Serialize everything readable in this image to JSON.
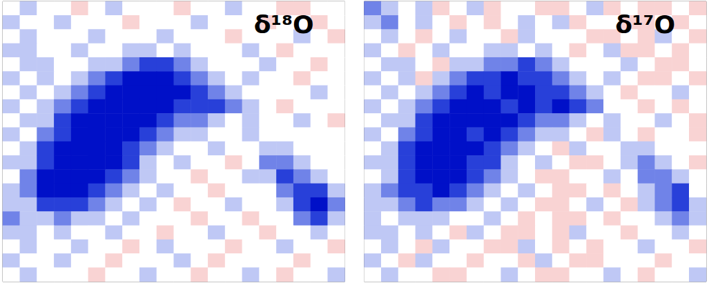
{
  "chart_data": [
    {
      "type": "heatmap",
      "title": "δ¹⁸O",
      "zlim": [
        -4,
        4
      ],
      "tick_labels": false,
      "cells": [
        [
          0,
          -1,
          0,
          0,
          1,
          0,
          -1,
          0,
          0,
          0,
          1,
          0,
          0,
          -1,
          0,
          0,
          1,
          1,
          0,
          0
        ],
        [
          -1,
          0,
          0,
          -1,
          0,
          0,
          0,
          1,
          0,
          0,
          0,
          -1,
          0,
          0,
          0,
          1,
          0,
          0,
          1,
          0
        ],
        [
          0,
          -1,
          0,
          0,
          0,
          -1,
          0,
          0,
          0,
          -1,
          0,
          0,
          0,
          1,
          0,
          0,
          0,
          -1,
          0,
          1
        ],
        [
          -1,
          -1,
          0,
          0,
          -1,
          0,
          0,
          -1,
          -1,
          0,
          -1,
          0,
          0,
          0,
          -1,
          0,
          1,
          0,
          0,
          0
        ],
        [
          0,
          -1,
          -1,
          0,
          0,
          -1,
          -1,
          -2,
          -3,
          -3,
          -2,
          -1,
          0,
          0,
          0,
          -1,
          0,
          0,
          1,
          0
        ],
        [
          -1,
          0,
          -1,
          0,
          -1,
          -2,
          -3,
          -4,
          -4,
          -4,
          -3,
          -2,
          -1,
          0,
          -1,
          0,
          0,
          1,
          0,
          0
        ],
        [
          0,
          -1,
          0,
          -1,
          -2,
          -3,
          -4,
          -4,
          -4,
          -4,
          -4,
          -3,
          -2,
          -1,
          0,
          0,
          0,
          0,
          -1,
          0
        ],
        [
          -1,
          0,
          -1,
          -2,
          -3,
          -4,
          -4,
          -4,
          -4,
          -4,
          -3,
          -3,
          -3,
          -2,
          -1,
          0,
          1,
          0,
          0,
          0
        ],
        [
          0,
          -1,
          -1,
          -3,
          -4,
          -4,
          -4,
          -4,
          -4,
          -3,
          -2,
          -2,
          -1,
          0,
          -1,
          0,
          0,
          -1,
          0,
          1
        ],
        [
          -1,
          0,
          -2,
          -3,
          -4,
          -4,
          -4,
          -4,
          -3,
          -2,
          -1,
          -1,
          0,
          0,
          -1,
          0,
          0,
          0,
          0,
          0
        ],
        [
          0,
          -1,
          -3,
          -4,
          -4,
          -4,
          -4,
          -3,
          -2,
          -1,
          0,
          0,
          -1,
          0,
          0,
          -1,
          -1,
          0,
          0,
          0
        ],
        [
          -1,
          -1,
          -3,
          -4,
          -4,
          -4,
          -4,
          -3,
          -1,
          0,
          -1,
          0,
          0,
          1,
          0,
          -2,
          -2,
          -1,
          0,
          0
        ],
        [
          0,
          -2,
          -4,
          -4,
          -4,
          -4,
          -3,
          -2,
          -1,
          0,
          0,
          1,
          0,
          0,
          -1,
          -1,
          -3,
          -2,
          -1,
          0
        ],
        [
          -1,
          -2,
          -4,
          -4,
          -4,
          -3,
          -2,
          -1,
          0,
          -1,
          0,
          0,
          1,
          0,
          0,
          0,
          -2,
          -3,
          -3,
          -1
        ],
        [
          -1,
          -1,
          -3,
          -3,
          -3,
          -2,
          -1,
          0,
          -1,
          0,
          1,
          0,
          0,
          -1,
          0,
          0,
          -1,
          -3,
          -4,
          -2
        ],
        [
          -2,
          -1,
          -1,
          -2,
          -1,
          -1,
          0,
          -1,
          0,
          0,
          0,
          1,
          0,
          0,
          1,
          0,
          0,
          -2,
          -3,
          -1
        ],
        [
          -1,
          -1,
          0,
          -1,
          0,
          0,
          -1,
          0,
          0,
          1,
          0,
          0,
          -1,
          0,
          0,
          1,
          0,
          0,
          -1,
          0
        ],
        [
          0,
          -1,
          0,
          0,
          -1,
          0,
          0,
          1,
          0,
          -1,
          0,
          0,
          0,
          1,
          0,
          0,
          -1,
          0,
          0,
          1
        ],
        [
          -1,
          0,
          0,
          -1,
          0,
          0,
          1,
          0,
          0,
          0,
          -1,
          0,
          1,
          0,
          0,
          0,
          0,
          1,
          0,
          0
        ],
        [
          0,
          -1,
          0,
          0,
          0,
          1,
          0,
          0,
          -1,
          0,
          0,
          1,
          0,
          0,
          -1,
          0,
          1,
          0,
          0,
          -1
        ]
      ]
    },
    {
      "type": "heatmap",
      "title": "δ¹⁷O",
      "zlim": [
        -4,
        4
      ],
      "tick_labels": false,
      "cells": [
        [
          -2,
          -1,
          0,
          -1,
          1,
          0,
          -1,
          1,
          0,
          0,
          1,
          1,
          0,
          -1,
          1,
          0,
          1,
          1,
          0,
          1
        ],
        [
          -1,
          -2,
          0,
          -1,
          0,
          1,
          0,
          1,
          0,
          -1,
          0,
          -1,
          1,
          0,
          0,
          1,
          1,
          0,
          1,
          0
        ],
        [
          0,
          -1,
          0,
          1,
          0,
          -1,
          0,
          0,
          1,
          -1,
          0,
          0,
          0,
          1,
          1,
          0,
          1,
          -1,
          0,
          1
        ],
        [
          -1,
          0,
          1,
          0,
          -1,
          0,
          0,
          -1,
          -1,
          0,
          -1,
          0,
          1,
          0,
          -1,
          1,
          1,
          0,
          1,
          0
        ],
        [
          0,
          -1,
          -1,
          0,
          1,
          -1,
          -1,
          -2,
          -2,
          -3,
          -2,
          -1,
          0,
          0,
          0,
          -1,
          0,
          1,
          1,
          0
        ],
        [
          -1,
          0,
          -1,
          1,
          -1,
          -2,
          -3,
          -3,
          -4,
          -3,
          -3,
          -2,
          -1,
          0,
          -1,
          0,
          1,
          1,
          0,
          1
        ],
        [
          0,
          -1,
          0,
          -1,
          -2,
          -3,
          -4,
          -3,
          -4,
          -4,
          -3,
          -3,
          -2,
          -1,
          0,
          1,
          0,
          0,
          -1,
          0
        ],
        [
          -1,
          0,
          -1,
          -2,
          -3,
          -4,
          -4,
          -4,
          -3,
          -4,
          -3,
          -4,
          -3,
          -2,
          0,
          0,
          1,
          0,
          1,
          0
        ],
        [
          0,
          -1,
          -1,
          -3,
          -4,
          -4,
          -4,
          -4,
          -4,
          -3,
          -2,
          -2,
          -1,
          0,
          -1,
          0,
          0,
          -1,
          0,
          1
        ],
        [
          -1,
          0,
          -2,
          -3,
          -4,
          -4,
          -3,
          -4,
          -3,
          -2,
          -1,
          -1,
          0,
          1,
          -1,
          0,
          1,
          0,
          0,
          1
        ],
        [
          0,
          -1,
          -3,
          -4,
          -4,
          -4,
          -4,
          -3,
          -2,
          -1,
          0,
          1,
          -1,
          0,
          0,
          -1,
          -1,
          0,
          0,
          0
        ],
        [
          -1,
          -1,
          -3,
          -4,
          -4,
          -4,
          -3,
          -3,
          -1,
          0,
          -1,
          0,
          1,
          1,
          0,
          -1,
          -2,
          -1,
          0,
          1
        ],
        [
          0,
          -1,
          -3,
          -4,
          -4,
          -4,
          -3,
          -2,
          -1,
          0,
          1,
          1,
          0,
          0,
          -1,
          0,
          -2,
          -2,
          -1,
          0
        ],
        [
          -1,
          -2,
          -3,
          -3,
          -4,
          -3,
          -2,
          -1,
          0,
          -1,
          0,
          1,
          1,
          0,
          1,
          0,
          -1,
          -2,
          -3,
          0
        ],
        [
          -1,
          -1,
          -2,
          -3,
          -2,
          -2,
          -1,
          0,
          -1,
          0,
          1,
          1,
          0,
          -1,
          0,
          1,
          -1,
          -2,
          -3,
          -1
        ],
        [
          -1,
          0,
          -1,
          -1,
          -1,
          0,
          0,
          -1,
          0,
          1,
          0,
          1,
          1,
          0,
          1,
          0,
          0,
          -1,
          -2,
          -1
        ],
        [
          -1,
          -1,
          0,
          -1,
          0,
          1,
          -1,
          0,
          1,
          1,
          0,
          1,
          -1,
          0,
          0,
          1,
          0,
          0,
          -1,
          0
        ],
        [
          0,
          -1,
          0,
          1,
          -1,
          0,
          0,
          1,
          1,
          -1,
          0,
          1,
          0,
          1,
          0,
          0,
          -1,
          0,
          0,
          1
        ],
        [
          -1,
          0,
          1,
          -1,
          0,
          0,
          1,
          0,
          0,
          1,
          -1,
          0,
          1,
          1,
          0,
          0,
          0,
          1,
          0,
          0
        ],
        [
          0,
          -1,
          0,
          0,
          1,
          1,
          0,
          0,
          -1,
          0,
          1,
          1,
          0,
          0,
          -1,
          0,
          1,
          0,
          0,
          -1
        ]
      ]
    }
  ]
}
